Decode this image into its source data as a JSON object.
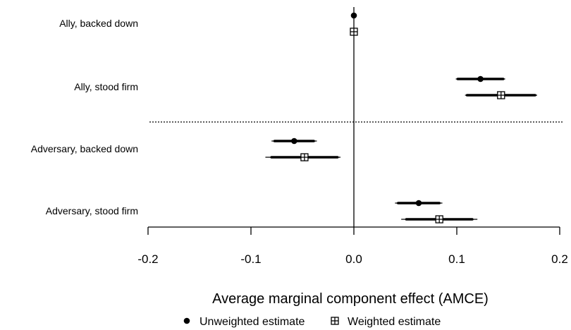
{
  "chart_data": {
    "type": "coefficient_plot",
    "xlabel": "Average marginal component effect (AMCE)",
    "xlim": [
      -0.2,
      0.2
    ],
    "x_ticks": [
      -0.2,
      -0.1,
      0.0,
      0.1,
      0.2
    ],
    "x_tick_labels": [
      "-0.2",
      "-0.1",
      "0.0",
      "0.1",
      "0.2"
    ],
    "categories": [
      "Ally, backed down",
      "Ally, stood firm",
      "Adversary, backed down",
      "Adversary, stood firm"
    ],
    "series": [
      {
        "name": "Unweighted estimate",
        "marker": "filled-circle",
        "estimates": [
          0.0,
          0.123,
          -0.058,
          0.063
        ],
        "ci_inner": [
          [
            0.0,
            0.0
          ],
          [
            0.101,
            0.145
          ],
          [
            -0.077,
            -0.039
          ],
          [
            0.043,
            0.083
          ]
        ],
        "ci_outer": [
          [
            0.0,
            0.0
          ],
          [
            0.099,
            0.147
          ],
          [
            -0.08,
            -0.036
          ],
          [
            0.04,
            0.086
          ]
        ]
      },
      {
        "name": "Weighted estimate",
        "marker": "boxed-plus",
        "estimates": [
          0.0,
          0.143,
          -0.048,
          0.083
        ],
        "ci_inner": [
          [
            0.0,
            0.0
          ],
          [
            0.11,
            0.176
          ],
          [
            -0.08,
            -0.016
          ],
          [
            0.051,
            0.115
          ]
        ],
        "ci_outer": [
          [
            0.0,
            0.0
          ],
          [
            0.108,
            0.178
          ],
          [
            -0.086,
            -0.013
          ],
          [
            0.046,
            0.12
          ]
        ]
      }
    ],
    "reference_line": 0.0,
    "group_separator": "dotted line between ally and adversary groups",
    "legend_position": "bottom"
  }
}
